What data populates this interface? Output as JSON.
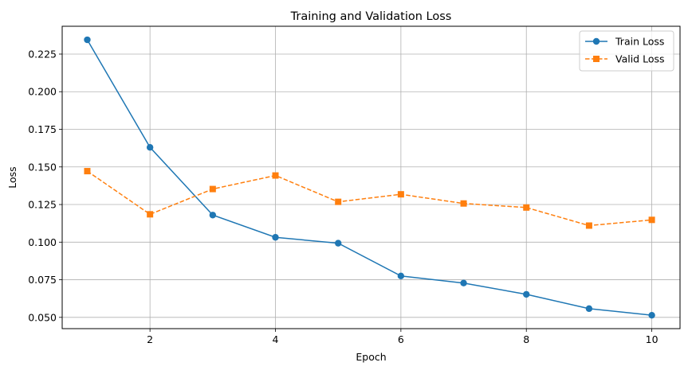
{
  "chart_data": {
    "type": "line",
    "title": "Training and Validation Loss",
    "xlabel": "Epoch",
    "ylabel": "Loss",
    "x": [
      1,
      2,
      3,
      4,
      5,
      6,
      7,
      8,
      9,
      10
    ],
    "xlim": [
      0.6,
      10.45
    ],
    "ylim": [
      0.0425,
      0.2435
    ],
    "xticks": [
      2,
      4,
      6,
      8,
      10
    ],
    "xtick_labels": [
      "2",
      "4",
      "6",
      "8",
      "10"
    ],
    "yticks": [
      0.05,
      0.075,
      0.1,
      0.125,
      0.15,
      0.175,
      0.2,
      0.225
    ],
    "ytick_labels": [
      "0.050",
      "0.075",
      "0.100",
      "0.125",
      "0.150",
      "0.175",
      "0.200",
      "0.225"
    ],
    "grid": true,
    "legend_position": "top-right",
    "series": [
      {
        "name": "Train Loss",
        "color": "#1f77b4",
        "line_style": "solid",
        "marker": "circle",
        "values": [
          0.2345,
          0.163,
          0.118,
          0.1032,
          0.0993,
          0.0775,
          0.0728,
          0.0653,
          0.0558,
          0.0514
        ]
      },
      {
        "name": "Valid Loss",
        "color": "#ff7f0e",
        "line_style": "dashed",
        "marker": "square",
        "values": [
          0.1472,
          0.1185,
          0.1353,
          0.1443,
          0.1268,
          0.1318,
          0.1257,
          0.123,
          0.111,
          0.1148
        ]
      }
    ]
  }
}
